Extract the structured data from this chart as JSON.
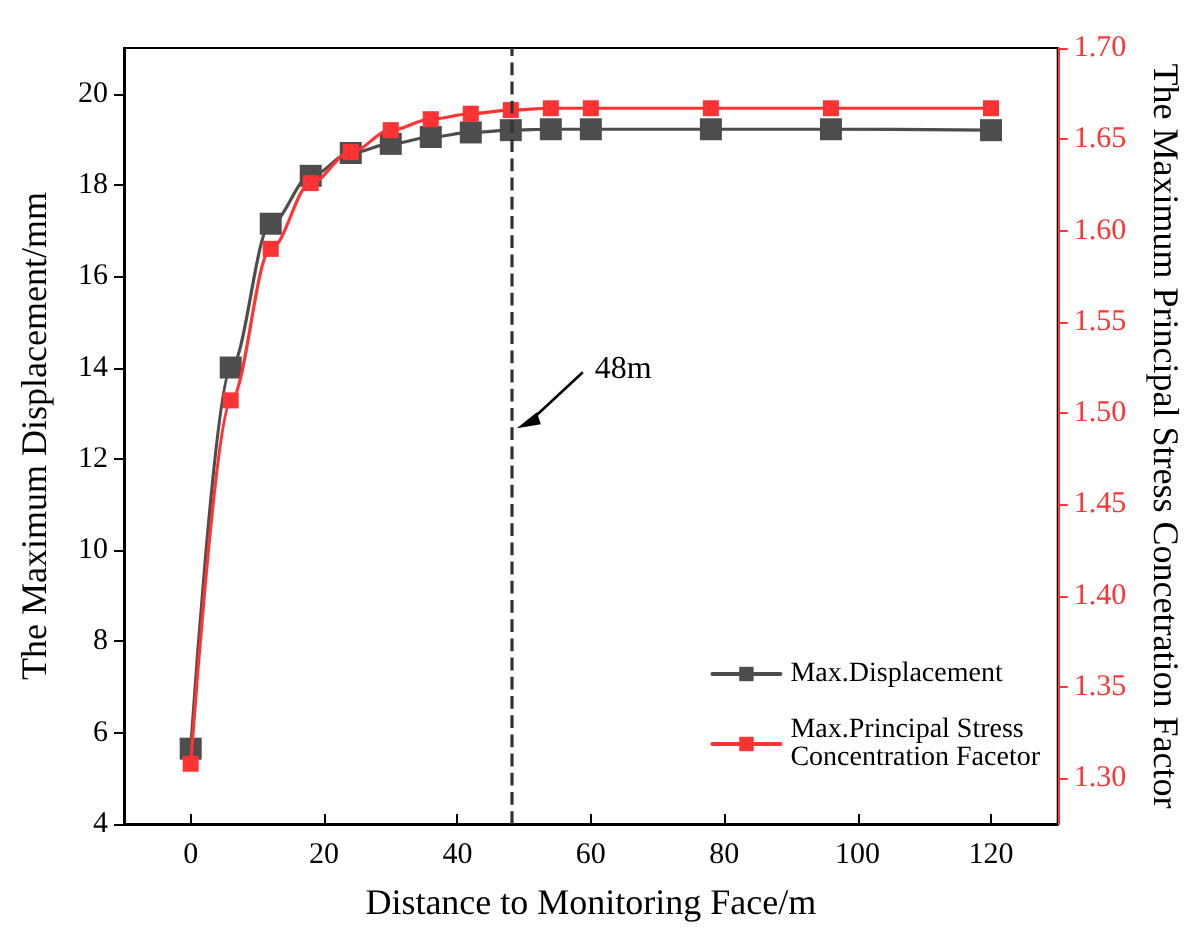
{
  "chart_data": {
    "type": "line",
    "xlabel": "Distance to Monitoring Face/m",
    "ylabel": "The Maximum Displacement/mm",
    "y2label": "The Maximum Principal Stress Concetration Factor",
    "x": [
      0,
      6,
      12,
      18,
      24,
      30,
      36,
      42,
      48,
      54,
      60,
      78,
      96,
      120
    ],
    "series": [
      {
        "name": "Max.Displacement",
        "color": "#4d4d4d",
        "values": [
          5.65,
          14.0,
          17.15,
          18.2,
          18.7,
          18.9,
          19.05,
          19.15,
          19.2,
          19.22,
          19.22,
          19.22,
          19.22,
          19.2
        ]
      },
      {
        "name": "Max.Principal Stress Concentration Facetor",
        "color": "#ff3333",
        "axis": "y2",
        "values": [
          1.308,
          1.507,
          1.59,
          1.626,
          1.643,
          1.655,
          1.661,
          1.664,
          1.666,
          1.667,
          1.667,
          1.667,
          1.667,
          1.667
        ]
      }
    ],
    "xlim": [
      -10,
      130
    ],
    "xticks": [
      0,
      20,
      40,
      60,
      80,
      100,
      120
    ],
    "ylim": [
      4,
      21
    ],
    "yticks": [
      4,
      6,
      8,
      10,
      12,
      14,
      16,
      18,
      20
    ],
    "y2lim": [
      1.275,
      1.7
    ],
    "y2ticks": [
      {
        "value": 1.3,
        "label": "1.30"
      },
      1.35,
      {
        "value": 1.4,
        "label": "1.40"
      },
      1.45,
      {
        "value": 1.5,
        "label": "1.50"
      },
      1.55,
      {
        "value": 1.6,
        "label": "1.60"
      },
      1.65,
      {
        "value": 1.7,
        "label": "1.70"
      }
    ],
    "ref_lines": [
      {
        "axis": "x",
        "value": 48,
        "color": "#333333",
        "line_style": "dashed"
      }
    ],
    "annotations": [
      {
        "text": "48m",
        "x": 48,
        "y": 12.8
      }
    ],
    "marker": "square",
    "line_style": "solid",
    "grid": false,
    "legend": "bottom right"
  }
}
